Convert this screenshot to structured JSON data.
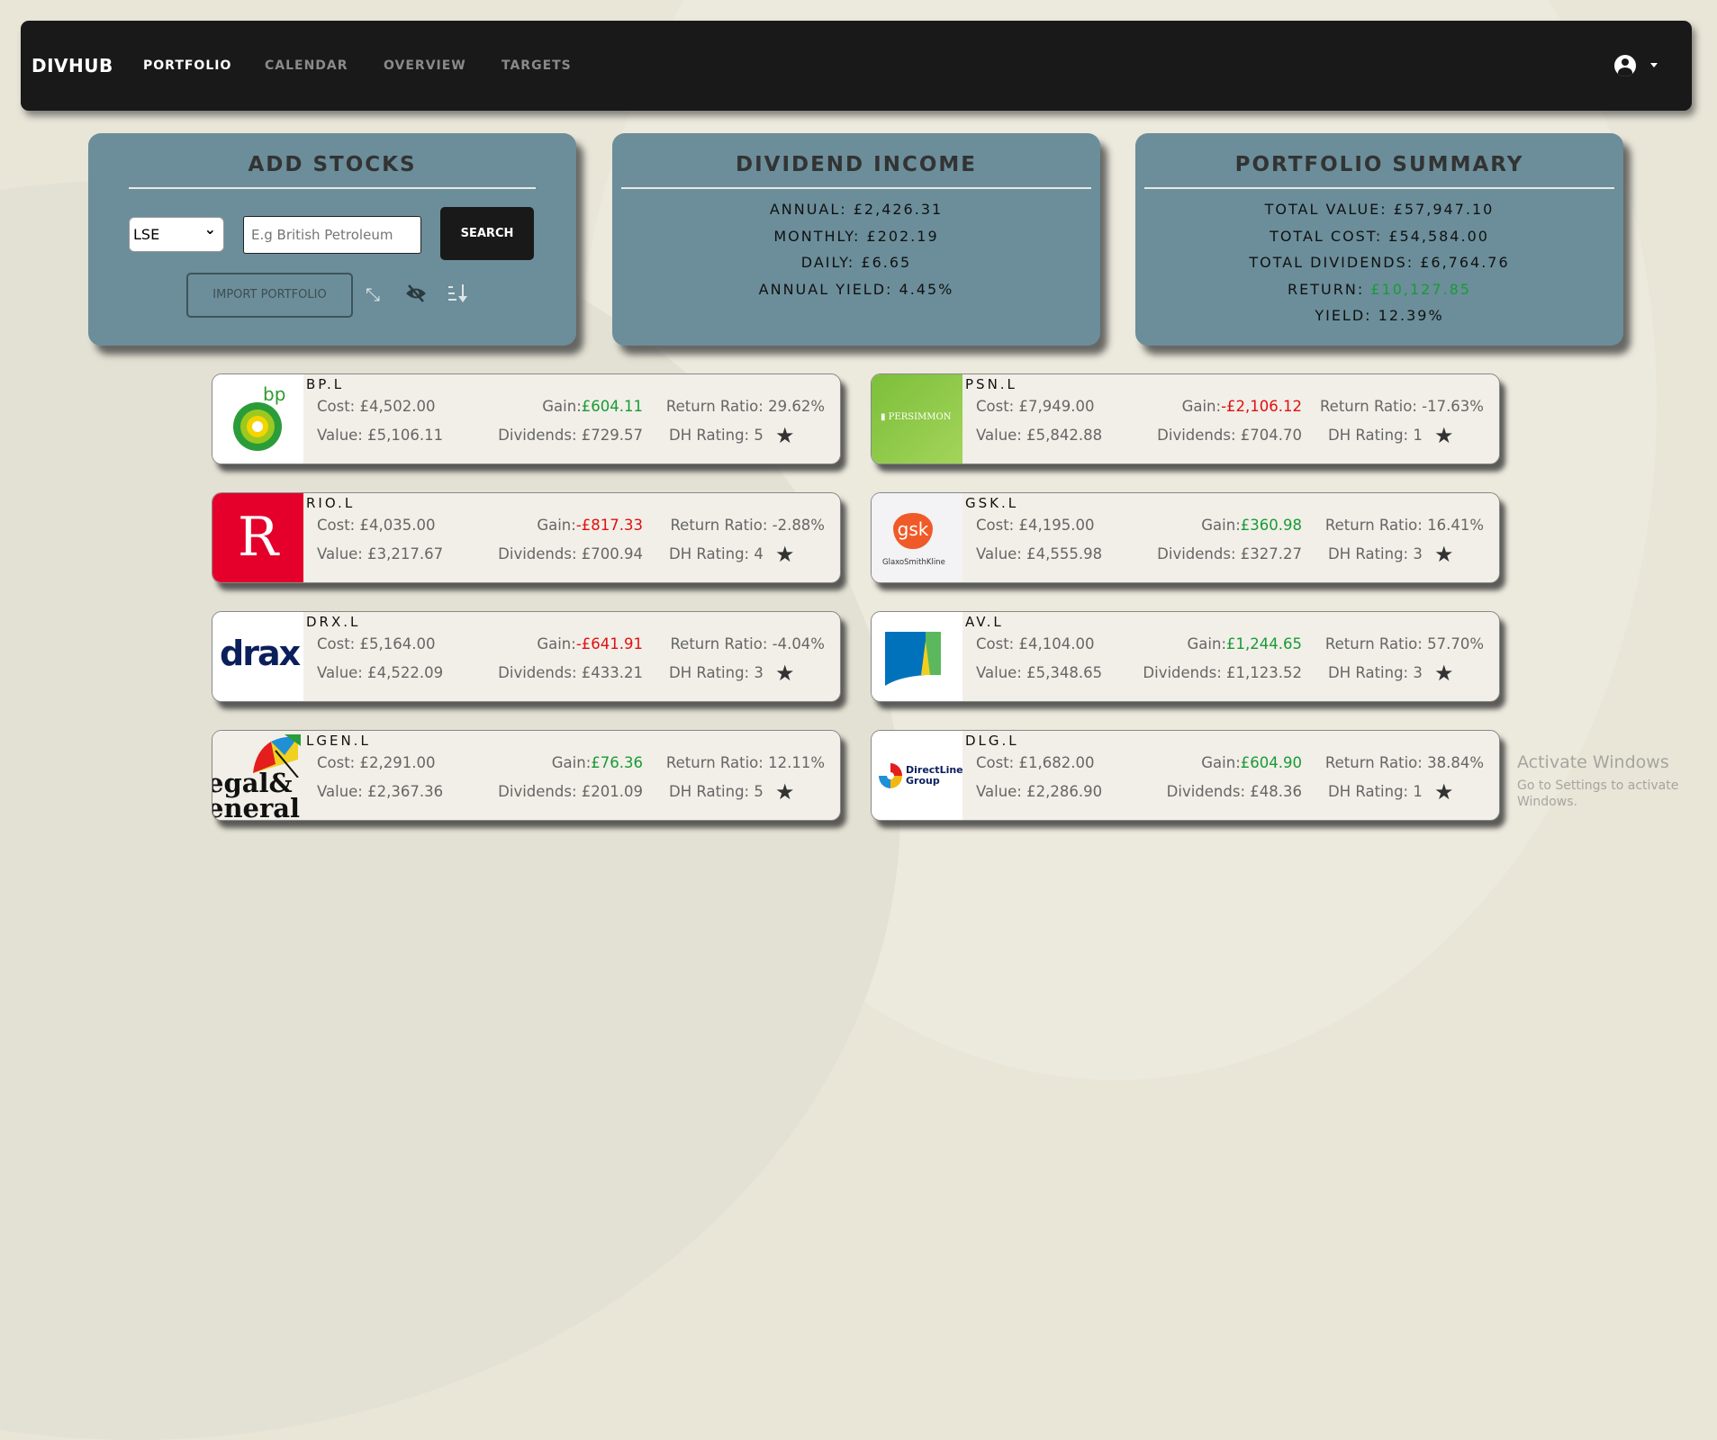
{
  "nav": {
    "brand": "DIVHUB",
    "links": [
      "PORTFOLIO",
      "CALENDAR",
      "OVERVIEW",
      "TARGETS"
    ],
    "active": "PORTFOLIO",
    "user_icon": "user-circle-icon"
  },
  "add_stocks": {
    "title": "ADD STOCKS",
    "exchange": "LSE",
    "search_placeholder": "E.g British Petroleum",
    "search_label": "SEARCH",
    "import_label": "IMPORT PORTFOLIO",
    "icons": [
      "compress-icon",
      "eye-slash-icon",
      "sort-icon"
    ]
  },
  "dividend_income": {
    "title": "DIVIDEND INCOME",
    "lines": [
      "ANNUAL: £2,426.31",
      "MONTHLY: £202.19",
      "DAILY: £6.65",
      "ANNUAL YIELD: 4.45%"
    ]
  },
  "portfolio_summary": {
    "title": "PORTFOLIO SUMMARY",
    "total_value": "TOTAL VALUE: £57,947.10",
    "total_cost": "TOTAL COST: £54,584.00",
    "total_dividends": "TOTAL DIVIDENDS: £6,764.76",
    "return_label": "RETURN: ",
    "return_value": "£10,127.85",
    "yield": "YIELD: 12.39%"
  },
  "colors": {
    "positive": "#1a9a36",
    "negative": "#e01010",
    "panel": "#6b8e9a",
    "nav": "#191919"
  },
  "stocks": [
    {
      "ticker": "BP.L",
      "cost": "Cost: £4,502.00",
      "value": "Value: £5,106.11",
      "gain": "£604.11",
      "gain_positive": true,
      "dividends": "Dividends: £729.57",
      "return_ratio": "Return Ratio: 29.62%",
      "rating": "DH Rating: 5",
      "logo_text": "bp"
    },
    {
      "ticker": "PSN.L",
      "cost": "Cost: £7,949.00",
      "value": "Value: £5,842.88",
      "gain": "-£2,106.12",
      "gain_positive": false,
      "dividends": "Dividends: £704.70",
      "return_ratio": "Return Ratio: -17.63%",
      "rating": "DH Rating: 1",
      "logo_text": "PERSIMMON"
    },
    {
      "ticker": "RIO.L",
      "cost": "Cost: £4,035.00",
      "value": "Value: £3,217.67",
      "gain": "-£817.33",
      "gain_positive": false,
      "dividends": "Dividends: £700.94",
      "return_ratio": "Return Ratio: -2.88%",
      "rating": "DH Rating: 4",
      "logo_text": "R"
    },
    {
      "ticker": "GSK.L",
      "cost": "Cost: £4,195.00",
      "value": "Value: £4,555.98",
      "gain": "£360.98",
      "gain_positive": true,
      "dividends": "Dividends: £327.27",
      "return_ratio": "Return Ratio: 16.41%",
      "rating": "DH Rating: 3",
      "logo_text": "gsk GlaxoSmithKline"
    },
    {
      "ticker": "DRX.L",
      "cost": "Cost: £5,164.00",
      "value": "Value: £4,522.09",
      "gain": "-£641.91",
      "gain_positive": false,
      "dividends": "Dividends: £433.21",
      "return_ratio": "Return Ratio: -4.04%",
      "rating": "DH Rating: 3",
      "logo_text": "drax"
    },
    {
      "ticker": "AV.L",
      "cost": "Cost: £4,104.00",
      "value": "Value: £5,348.65",
      "gain": "£1,244.65",
      "gain_positive": true,
      "dividends": "Dividends: £1,123.52",
      "return_ratio": "Return Ratio: 57.70%",
      "rating": "DH Rating: 3",
      "logo_text": ""
    },
    {
      "ticker": "LGEN.L",
      "cost": "Cost: £2,291.00",
      "value": "Value: £2,367.36",
      "gain": "£76.36",
      "gain_positive": true,
      "dividends": "Dividends: £201.09",
      "return_ratio": "Return Ratio: 12.11%",
      "rating": "DH Rating: 5",
      "logo_text": "Legal & General"
    },
    {
      "ticker": "DLG.L",
      "cost": "Cost: £1,682.00",
      "value": "Value: £2,286.90",
      "gain": "£604.90",
      "gain_positive": true,
      "dividends": "Dividends: £48.36",
      "return_ratio": "Return Ratio: 38.84%",
      "rating": "DH Rating: 1",
      "logo_text": "DirectLine Group"
    }
  ],
  "gain_label": "Gain:",
  "watermark": {
    "line1": "Activate Windows",
    "line2": "Go to Settings to activate Windows."
  }
}
